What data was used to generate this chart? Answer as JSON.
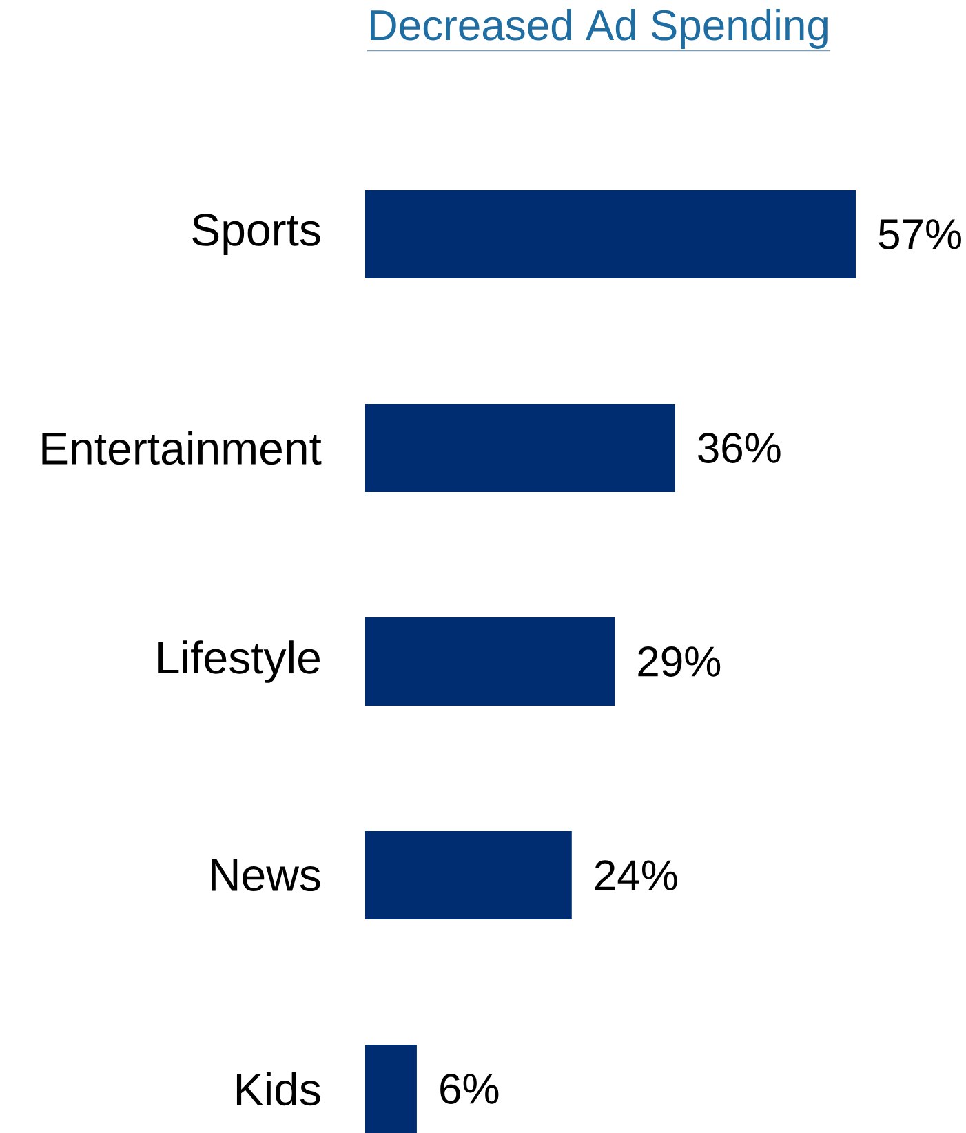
{
  "chart_data": {
    "type": "bar",
    "orientation": "horizontal",
    "title": "Decreased Ad Spending",
    "categories": [
      "Sports",
      "Entertainment",
      "Lifestyle",
      "News",
      "Kids"
    ],
    "values": [
      57,
      36,
      29,
      24,
      6
    ],
    "value_labels": [
      "57%",
      "36%",
      "29%",
      "24%",
      "6%"
    ],
    "color": "#002d72",
    "xlim": [
      0,
      57
    ]
  }
}
